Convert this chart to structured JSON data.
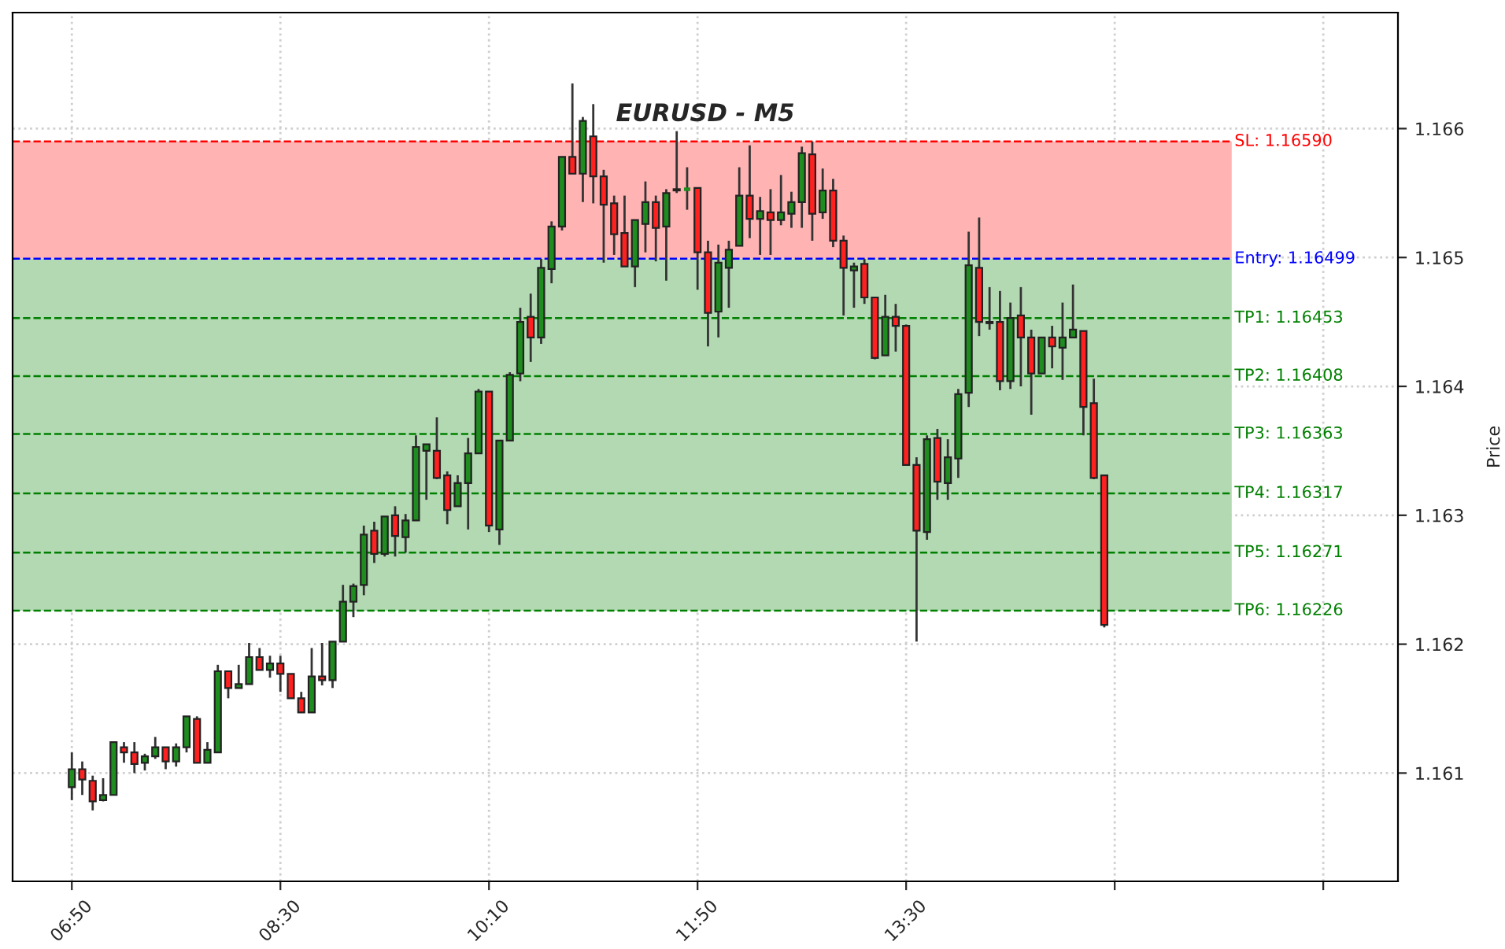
{
  "chart_data": {
    "type": "candlestick",
    "title": "EURUSD - M5",
    "ylabel": "Price",
    "x": [
      6.8333,
      6.9167,
      7,
      7.0833,
      7.1667,
      7.25,
      7.3333,
      7.4167,
      7.5,
      7.5833,
      7.6667,
      7.75,
      7.8333,
      7.9167,
      8,
      8.0833,
      8.1667,
      8.25,
      8.3333,
      8.4167,
      8.5,
      8.5833,
      8.6667,
      8.75,
      8.8333,
      8.9167,
      9,
      9.0833,
      9.1667,
      9.25,
      9.3333,
      9.4167,
      9.5,
      9.5833,
      9.6667,
      9.75,
      9.8333,
      9.9167,
      10,
      10.0833,
      10.1667,
      10.25,
      10.3333,
      10.4167,
      10.5,
      10.5833,
      10.6667,
      10.75,
      10.8333,
      10.9167,
      11,
      11.0833,
      11.1667,
      11.25,
      11.3333,
      11.4167,
      11.5,
      11.5833,
      11.6667,
      11.75,
      11.8333,
      11.9167,
      12,
      12.0833,
      12.1667,
      12.25,
      12.3333,
      12.4167,
      12.5,
      12.5833,
      12.6667,
      12.75,
      12.8333,
      12.9167,
      13,
      13.0833,
      13.1667,
      13.25,
      13.3333,
      13.4167,
      13.5,
      13.5833,
      13.6667,
      13.75,
      13.8333,
      13.9167,
      14,
      14.0833,
      14.1667,
      14.25,
      14.3333,
      14.4167,
      14.5,
      14.5833,
      14.6667,
      14.75,
      14.8333,
      14.9167,
      15,
      15.0833
    ],
    "ohlc": [
      [
        1.16089,
        1.16116,
        1.16079,
        1.16103
      ],
      [
        1.16103,
        1.16109,
        1.16083,
        1.16095
      ],
      [
        1.16094,
        1.16098,
        1.16071,
        1.16078
      ],
      [
        1.16079,
        1.16096,
        1.16078,
        1.16083
      ],
      [
        1.16083,
        1.16124,
        1.16083,
        1.16124
      ],
      [
        1.1612,
        1.16124,
        1.16108,
        1.16116
      ],
      [
        1.16116,
        1.16124,
        1.161,
        1.16107
      ],
      [
        1.16108,
        1.16115,
        1.16102,
        1.16113
      ],
      [
        1.16113,
        1.16128,
        1.16111,
        1.1612
      ],
      [
        1.1612,
        1.1612,
        1.16103,
        1.16109
      ],
      [
        1.16109,
        1.16123,
        1.16105,
        1.1612
      ],
      [
        1.1612,
        1.16144,
        1.16116,
        1.16144
      ],
      [
        1.16142,
        1.16144,
        1.16108,
        1.16108
      ],
      [
        1.16108,
        1.16124,
        1.16108,
        1.16118
      ],
      [
        1.16116,
        1.16184,
        1.16116,
        1.16179
      ],
      [
        1.16179,
        1.16179,
        1.16158,
        1.16166
      ],
      [
        1.16166,
        1.16184,
        1.16166,
        1.16169
      ],
      [
        1.16169,
        1.16201,
        1.16169,
        1.1619
      ],
      [
        1.1619,
        1.16197,
        1.1618,
        1.1618
      ],
      [
        1.1618,
        1.16191,
        1.16174,
        1.16185
      ],
      [
        1.16185,
        1.16191,
        1.16163,
        1.16177
      ],
      [
        1.16177,
        1.16177,
        1.16158,
        1.16158
      ],
      [
        1.16158,
        1.16163,
        1.16147,
        1.16147
      ],
      [
        1.16147,
        1.16197,
        1.16147,
        1.16175
      ],
      [
        1.16175,
        1.16201,
        1.16168,
        1.16172
      ],
      [
        1.16172,
        1.16202,
        1.16166,
        1.16202
      ],
      [
        1.16202,
        1.16246,
        1.16202,
        1.16233
      ],
      [
        1.16233,
        1.16247,
        1.16221,
        1.16245
      ],
      [
        1.16246,
        1.16292,
        1.16238,
        1.16285
      ],
      [
        1.16288,
        1.16295,
        1.16263,
        1.1627
      ],
      [
        1.1627,
        1.16299,
        1.16268,
        1.16299
      ],
      [
        1.163,
        1.16307,
        1.16268,
        1.16284
      ],
      [
        1.16283,
        1.16301,
        1.16271,
        1.16296
      ],
      [
        1.16296,
        1.16362,
        1.16296,
        1.16353
      ],
      [
        1.1635,
        1.16355,
        1.16312,
        1.16355
      ],
      [
        1.1635,
        1.16376,
        1.16328,
        1.16329
      ],
      [
        1.16331,
        1.16334,
        1.16293,
        1.16304
      ],
      [
        1.16307,
        1.16331,
        1.16307,
        1.16325
      ],
      [
        1.16325,
        1.1636,
        1.16289,
        1.16348
      ],
      [
        1.16348,
        1.16398,
        1.16348,
        1.16396
      ],
      [
        1.16396,
        1.16396,
        1.16287,
        1.16292
      ],
      [
        1.16289,
        1.16358,
        1.16277,
        1.16358
      ],
      [
        1.16358,
        1.16411,
        1.16358,
        1.16409
      ],
      [
        1.1641,
        1.16461,
        1.16404,
        1.1645
      ],
      [
        1.16454,
        1.16472,
        1.16419,
        1.16438
      ],
      [
        1.16438,
        1.16499,
        1.16433,
        1.16492
      ],
      [
        1.16491,
        1.16528,
        1.1648,
        1.16524
      ],
      [
        1.16524,
        1.16578,
        1.16521,
        1.16578
      ],
      [
        1.16578,
        1.16635,
        1.16565,
        1.16565
      ],
      [
        1.16565,
        1.16609,
        1.16543,
        1.16606
      ],
      [
        1.16594,
        1.16619,
        1.16542,
        1.16563
      ],
      [
        1.16563,
        1.16568,
        1.16496,
        1.16541
      ],
      [
        1.16542,
        1.16548,
        1.16502,
        1.16518
      ],
      [
        1.16519,
        1.16548,
        1.16493,
        1.16493
      ],
      [
        1.16493,
        1.16529,
        1.16477,
        1.16529
      ],
      [
        1.16526,
        1.16559,
        1.16504,
        1.16543
      ],
      [
        1.16543,
        1.16548,
        1.16497,
        1.16523
      ],
      [
        1.16524,
        1.16553,
        1.16482,
        1.1655
      ],
      [
        1.16552,
        1.16598,
        1.1655,
        1.16553
      ],
      [
        1.16553,
        1.1657,
        1.16537,
        1.16553
      ],
      [
        1.16554,
        1.16554,
        1.16475,
        1.16504
      ],
      [
        1.16504,
        1.16513,
        1.16431,
        1.16457
      ],
      [
        1.16458,
        1.1651,
        1.16438,
        1.16496
      ],
      [
        1.16492,
        1.16513,
        1.16461,
        1.16506
      ],
      [
        1.16509,
        1.1657,
        1.16509,
        1.16548
      ],
      [
        1.16548,
        1.16587,
        1.16515,
        1.1653
      ],
      [
        1.1653,
        1.16547,
        1.16502,
        1.16536
      ],
      [
        1.16535,
        1.16553,
        1.16502,
        1.16529
      ],
      [
        1.16529,
        1.16564,
        1.16525,
        1.16535
      ],
      [
        1.16534,
        1.16551,
        1.16523,
        1.16543
      ],
      [
        1.16543,
        1.16586,
        1.16523,
        1.16581
      ],
      [
        1.1658,
        1.1659,
        1.16513,
        1.16534
      ],
      [
        1.16535,
        1.16569,
        1.1653,
        1.16552
      ],
      [
        1.16552,
        1.16561,
        1.16508,
        1.16513
      ],
      [
        1.16513,
        1.16517,
        1.16455,
        1.16492
      ],
      [
        1.1649,
        1.16496,
        1.16461,
        1.16493
      ],
      [
        1.16495,
        1.16499,
        1.16464,
        1.16469
      ],
      [
        1.16469,
        1.16469,
        1.16421,
        1.16422
      ],
      [
        1.16424,
        1.16471,
        1.16424,
        1.16454
      ],
      [
        1.16454,
        1.16464,
        1.16427,
        1.16447
      ],
      [
        1.16447,
        1.16448,
        1.16339,
        1.16339
      ],
      [
        1.16339,
        1.16345,
        1.16202,
        1.16288
      ],
      [
        1.16287,
        1.16362,
        1.16281,
        1.16359
      ],
      [
        1.1636,
        1.16367,
        1.16312,
        1.16326
      ],
      [
        1.16325,
        1.16359,
        1.16312,
        1.16345
      ],
      [
        1.16344,
        1.16398,
        1.16329,
        1.16394
      ],
      [
        1.16395,
        1.1652,
        1.16384,
        1.16494
      ],
      [
        1.16492,
        1.16531,
        1.16439,
        1.1645
      ],
      [
        1.1645,
        1.16477,
        1.16444,
        1.16449
      ],
      [
        1.1645,
        1.16474,
        1.16397,
        1.16404
      ],
      [
        1.16404,
        1.16465,
        1.16398,
        1.16453
      ],
      [
        1.16455,
        1.16477,
        1.164,
        1.16438
      ],
      [
        1.16438,
        1.16444,
        1.16378,
        1.1641
      ],
      [
        1.1641,
        1.16438,
        1.1641,
        1.16438
      ],
      [
        1.16438,
        1.16447,
        1.16414,
        1.16431
      ],
      [
        1.1643,
        1.16465,
        1.16405,
        1.16438
      ],
      [
        1.16438,
        1.16479,
        1.16438,
        1.16444
      ],
      [
        1.16443,
        1.16443,
        1.16362,
        1.16384
      ],
      [
        1.16387,
        1.16406,
        1.16328,
        1.16329
      ],
      [
        1.16331,
        1.16331,
        1.16213,
        1.16215
      ]
    ],
    "colors": [
      "#1e8c1e",
      "#ff2020",
      "#ff2020",
      "#1e8c1e",
      "#1e8c1e",
      "#ff2020",
      "#ff2020",
      "#1e8c1e",
      "#1e8c1e",
      "#ff2020",
      "#1e8c1e",
      "#1e8c1e",
      "#ff2020",
      "#1e8c1e",
      "#1e8c1e",
      "#ff2020",
      "#1e8c1e",
      "#1e8c1e",
      "#ff2020",
      "#1e8c1e",
      "#ff2020",
      "#ff2020",
      "#ff2020",
      "#1e8c1e",
      "#ff2020",
      "#1e8c1e",
      "#1e8c1e",
      "#1e8c1e",
      "#1e8c1e",
      "#ff2020",
      "#1e8c1e",
      "#ff2020",
      "#1e8c1e",
      "#1e8c1e",
      "#1e8c1e",
      "#ff2020",
      "#ff2020",
      "#1e8c1e",
      "#1e8c1e",
      "#1e8c1e",
      "#ff2020",
      "#1e8c1e",
      "#1e8c1e",
      "#1e8c1e",
      "#ff2020",
      "#1e8c1e",
      "#1e8c1e",
      "#1e8c1e",
      "#ff2020",
      "#1e8c1e",
      "#ff2020",
      "#ff2020",
      "#ff2020",
      "#ff2020",
      "#1e8c1e",
      "#1e8c1e",
      "#ff2020",
      "#1e8c1e",
      "#1e8c1e",
      "#1e8c1e",
      "#ff2020",
      "#ff2020",
      "#1e8c1e",
      "#1e8c1e",
      "#1e8c1e",
      "#ff2020",
      "#1e8c1e",
      "#ff2020",
      "#1e8c1e",
      "#1e8c1e",
      "#1e8c1e",
      "#ff2020",
      "#1e8c1e",
      "#ff2020",
      "#ff2020",
      "#1e8c1e",
      "#ff2020",
      "#ff2020",
      "#1e8c1e",
      "#ff2020",
      "#ff2020",
      "#ff2020",
      "#1e8c1e",
      "#ff2020",
      "#1e8c1e",
      "#1e8c1e",
      "#1e8c1e",
      "#ff2020",
      "#ff2020",
      "#ff2020",
      "#1e8c1e",
      "#ff2020",
      "#ff2020",
      "#1e8c1e",
      "#ff2020",
      "#1e8c1e",
      "#1e8c1e",
      "#ff2020",
      "#ff2020",
      "#ff2020"
    ],
    "xlim": [
      6.36,
      17.43
    ],
    "xticks": [
      {
        "value": 6.8333,
        "label": "06:50"
      },
      {
        "value": 8.5,
        "label": "08:30"
      },
      {
        "value": 10.1667,
        "label": "10:10"
      },
      {
        "value": 11.8333,
        "label": "11:50"
      },
      {
        "value": 13.5,
        "label": "13:30"
      },
      {
        "value": 15.1667,
        "label": null
      },
      {
        "value": 16.8333,
        "label": null
      }
    ],
    "ylim": [
      1.16016,
      1.1669
    ],
    "yticks": [
      {
        "value": 1.161,
        "label": "1.161"
      },
      {
        "value": 1.162,
        "label": "1.162"
      },
      {
        "value": 1.163,
        "label": "1.163"
      },
      {
        "value": 1.164,
        "label": "1.164"
      },
      {
        "value": 1.165,
        "label": "1.165"
      },
      {
        "value": 1.166,
        "label": "1.166"
      }
    ],
    "bands": [
      {
        "axis": "y",
        "from": 1.16499,
        "to": 1.1659,
        "color": "#ffb3b3"
      },
      {
        "axis": "y",
        "from": 1.16226,
        "to": 1.16499,
        "color": "#b3d9b3"
      }
    ],
    "ref_lines": [
      {
        "axis": "y",
        "value": 1.1659,
        "label": "SL: 1.16590",
        "color": "#ff0000",
        "line_style": "dashed"
      },
      {
        "axis": "y",
        "value": 1.16499,
        "label": "Entry: 1.16499",
        "color": "#0000ff",
        "line_style": "dashed"
      },
      {
        "axis": "y",
        "value": 1.16453,
        "label": "TP1: 1.16453",
        "color": "#008000",
        "line_style": "dashed"
      },
      {
        "axis": "y",
        "value": 1.16408,
        "label": "TP2: 1.16408",
        "color": "#008000",
        "line_style": "dashed"
      },
      {
        "axis": "y",
        "value": 1.16363,
        "label": "TP3: 1.16363",
        "color": "#008000",
        "line_style": "dashed"
      },
      {
        "axis": "y",
        "value": 1.16317,
        "label": "TP4: 1.16317",
        "color": "#008000",
        "line_style": "dashed"
      },
      {
        "axis": "y",
        "value": 1.16271,
        "label": "TP5: 1.16271",
        "color": "#008000",
        "line_style": "dashed"
      },
      {
        "axis": "y",
        "value": 1.16226,
        "label": "TP6: 1.16226",
        "color": "#008000",
        "line_style": "dashed"
      }
    ],
    "grid": true,
    "legend": false
  }
}
